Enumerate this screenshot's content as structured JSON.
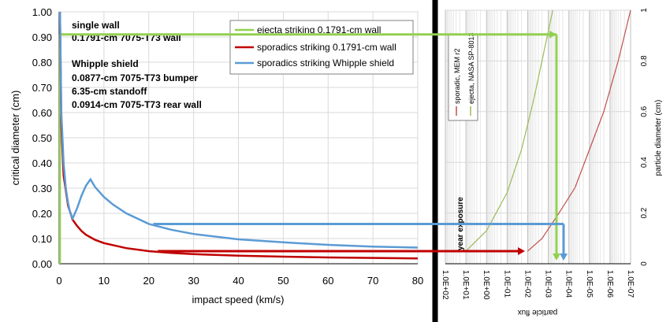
{
  "chart_data": [
    {
      "type": "line",
      "xlabel": "impact speed (km/s)",
      "ylabel": "critical diameter (cm)",
      "xlim": [
        0,
        80
      ],
      "ylim": [
        0,
        1.0
      ],
      "x_ticks": [
        "0",
        "10",
        "20",
        "30",
        "40",
        "50",
        "60",
        "70",
        "80"
      ],
      "y_ticks": [
        "0.00",
        "0.10",
        "0.20",
        "0.30",
        "0.40",
        "0.50",
        "0.60",
        "0.70",
        "0.80",
        "0.90",
        "1.00"
      ],
      "legend": {
        "placement": "top-right",
        "entries": [
          {
            "label": "ejecta striking 0.1791-cm wall",
            "color": "#92d050"
          },
          {
            "label": "sporadics striking 0.1791-cm wall",
            "color": "#c00000"
          },
          {
            "label": "sporadics striking Whipple shield",
            "color": "#5b9bd5"
          }
        ]
      },
      "annotations": [
        "single wall",
        "0.1791-cm 7075-T73 wall",
        "Whipple shield",
        "0.0877-cm 7075-T73 bumper",
        "6.35-cm standoff",
        "0.0914-cm 7075-T73 rear wall"
      ],
      "series": [
        {
          "name": "ejecta striking 0.1791-cm wall",
          "color": "#92d050",
          "x": [
            0.2,
            0.2
          ],
          "y": [
            0.91,
            0.0
          ]
        },
        {
          "name": "sporadics striking 0.1791-cm wall",
          "color": "#c00000",
          "x": [
            0.2,
            0.5,
            1,
            2,
            3,
            4,
            5,
            6,
            8,
            10,
            15,
            20,
            25,
            30,
            40,
            50,
            60,
            70,
            80
          ],
          "y": [
            1.0,
            0.55,
            0.35,
            0.23,
            0.175,
            0.15,
            0.13,
            0.115,
            0.095,
            0.082,
            0.062,
            0.05,
            0.043,
            0.038,
            0.032,
            0.028,
            0.025,
            0.023,
            0.021
          ]
        },
        {
          "name": "sporadics striking Whipple shield",
          "color": "#5b9bd5",
          "x": [
            0.2,
            0.5,
            1,
            1.5,
            2,
            2.5,
            3,
            4,
            5,
            6,
            7,
            8,
            10,
            12,
            15,
            20,
            25,
            30,
            40,
            50,
            60,
            70,
            80
          ],
          "y": [
            1.0,
            0.6,
            0.4,
            0.3,
            0.24,
            0.2,
            0.18,
            0.22,
            0.27,
            0.31,
            0.335,
            0.305,
            0.265,
            0.235,
            0.2,
            0.158,
            0.135,
            0.118,
            0.097,
            0.085,
            0.075,
            0.068,
            0.064
          ]
        }
      ],
      "guides": [
        {
          "color": "#92d050",
          "y": 0.91
        },
        {
          "color": "#5b9bd5",
          "y": 0.158,
          "x_start": 21
        },
        {
          "color": "#c00000",
          "y": 0.05,
          "x_start": 22
        }
      ],
      "grid": true
    },
    {
      "type": "line",
      "orientation": "rotated",
      "xlabel": "particle flux",
      "ylabel": "particle diameter (cm)",
      "x_scale": "log",
      "x_ticks": [
        "1.0E+02",
        "1.0E+01",
        "1.0E+00",
        "1.0E-01",
        "1.0E-02",
        "1.0E-03",
        "1.0E-04",
        "1.0E-05",
        "1.0E-06",
        "1.0E-07"
      ],
      "y_ticks": [
        "0",
        "0.2",
        "0.4",
        "0.6",
        "0.8",
        "1"
      ],
      "ylim": [
        0,
        1
      ],
      "annotation": "year exposure",
      "legend": {
        "placement": "top-left",
        "entries": [
          {
            "label": "sporadic, MEM r2",
            "color": "#c0504d"
          },
          {
            "label": "ejecta, NASA SP-8013",
            "color": "#9bbb59"
          }
        ]
      },
      "series": [
        {
          "name": "sporadic, MEM r2",
          "color": "#c0504d",
          "x": [
            0.01,
            0.002,
            0.0003,
            5e-05,
            1e-05,
            2e-06,
            4e-07,
            1e-07
          ],
          "y": [
            0.05,
            0.1,
            0.2,
            0.3,
            0.45,
            0.6,
            0.8,
            1.0
          ]
        },
        {
          "name": "ejecta, NASA SP-8013",
          "color": "#9bbb59",
          "x": [
            10,
            1,
            0.1,
            0.02,
            0.005,
            0.0015,
            0.0006
          ],
          "y": [
            0.05,
            0.13,
            0.28,
            0.45,
            0.65,
            0.85,
            1.0
          ]
        }
      ],
      "grid": true
    }
  ]
}
